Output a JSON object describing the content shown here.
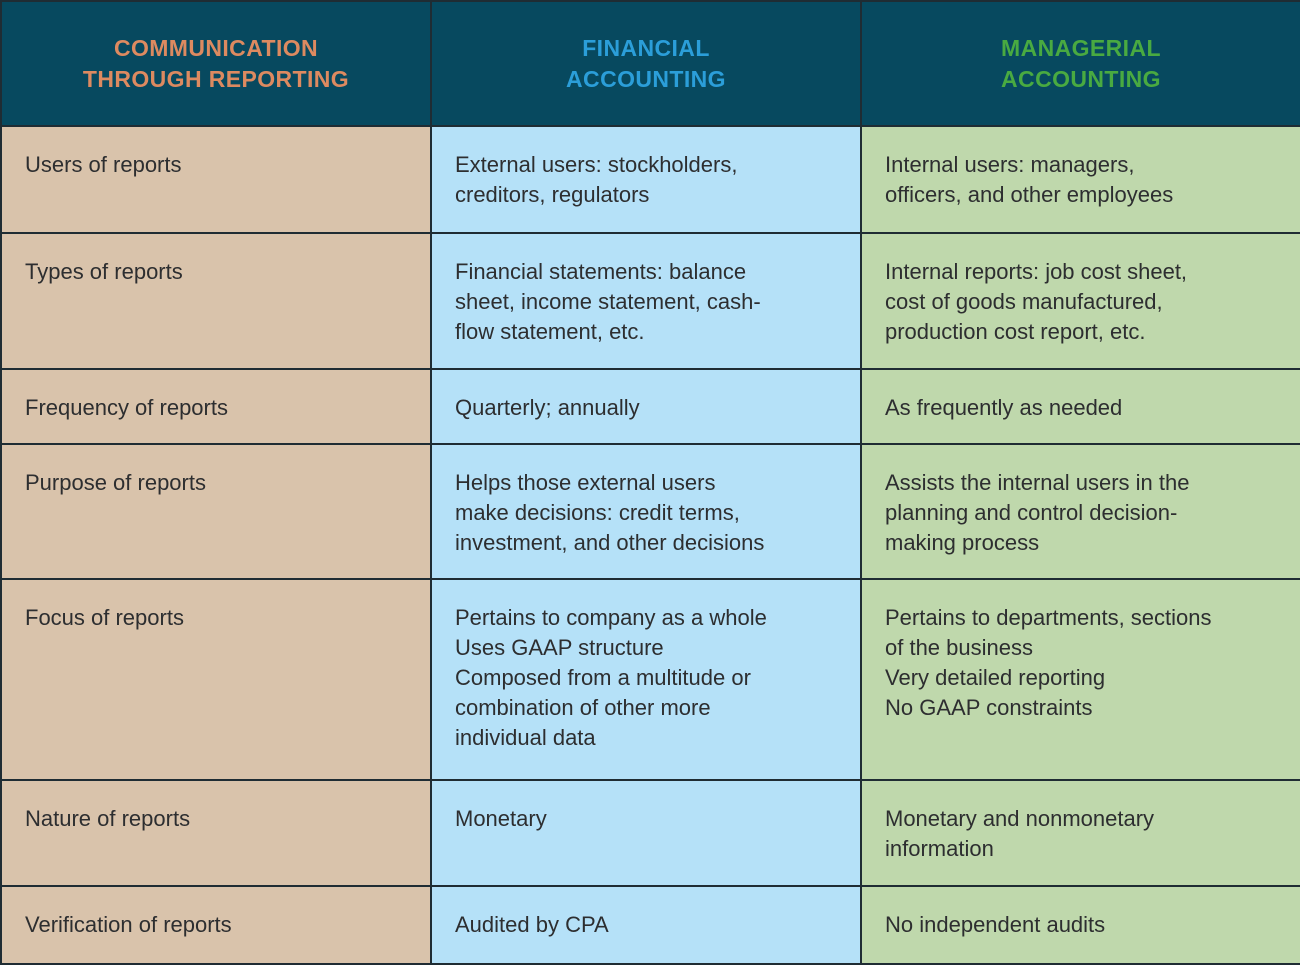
{
  "colors": {
    "header_bg": "#07495f",
    "header_col1_text": "#dd8a60",
    "header_col2_text": "#2b9ed9",
    "header_col3_text": "#49aa41",
    "col1_bg": "#d9c3ab",
    "col2_bg": "#b5e1f8",
    "col3_bg": "#bfd8ac",
    "border": "#1f2c33",
    "body_text": "#2d2e30"
  },
  "table": {
    "header": {
      "col1": [
        "COMMUNICATION",
        "THROUGH REPORTING"
      ],
      "col2": [
        "FINANCIAL",
        "ACCOUNTING"
      ],
      "col3": [
        "MANAGERIAL",
        "ACCOUNTING"
      ]
    },
    "rows": [
      {
        "label": "Users of reports",
        "financial": [
          "External users: stockholders,",
          "creditors, regulators"
        ],
        "managerial": [
          "Internal users: managers,",
          "officers, and other employees"
        ]
      },
      {
        "label": "Types of reports",
        "financial": [
          "Financial statements: balance",
          "sheet, income statement, cash-",
          "flow statement, etc."
        ],
        "managerial": [
          "Internal reports: job cost sheet,",
          "cost of goods manufactured,",
          "production cost report, etc."
        ]
      },
      {
        "label": "Frequency of reports",
        "financial": "Quarterly; annually",
        "managerial": "As frequently as needed"
      },
      {
        "label": "Purpose of reports",
        "financial": [
          "Helps those external users",
          "make decisions: credit terms,",
          "investment, and other decisions"
        ],
        "managerial": [
          "Assists the internal users in the",
          "planning and control decision-",
          "making process"
        ]
      },
      {
        "label": "Focus of reports",
        "financial": [
          "Pertains to company as a whole",
          "Uses GAAP structure",
          "Composed from a multitude or",
          "combination of other more",
          "individual data"
        ],
        "managerial": [
          "Pertains to departments, sections",
          "of the business",
          "Very detailed reporting",
          "No GAAP constraints"
        ]
      },
      {
        "label": "Nature of reports",
        "financial": "Monetary",
        "managerial": [
          "Monetary and nonmonetary",
          "information"
        ]
      },
      {
        "label": "Verification of reports",
        "financial": "Audited by CPA",
        "managerial": "No independent audits"
      }
    ]
  }
}
